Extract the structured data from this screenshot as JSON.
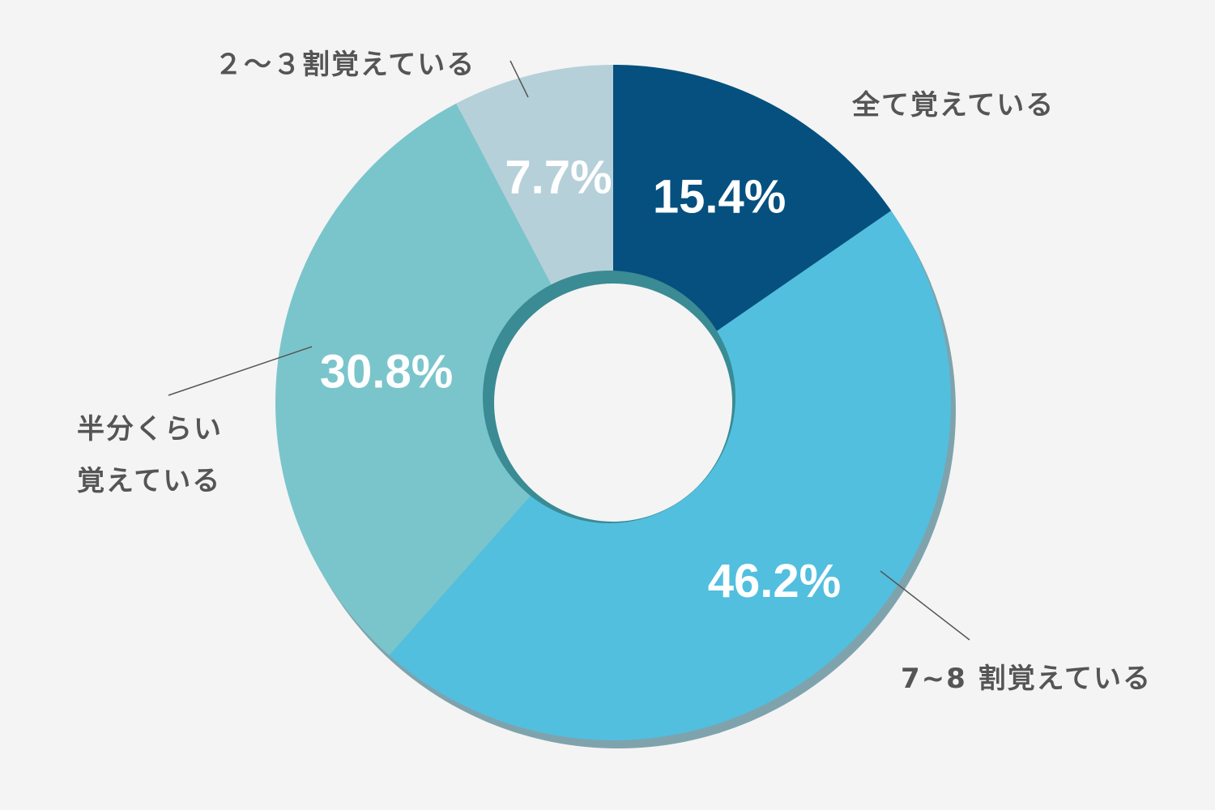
{
  "chart_data": {
    "type": "donut",
    "categories": [
      "全て覚えている",
      "7~8 割覚えている",
      "半分くらい\n覚えている",
      "２～３割覚えている"
    ],
    "values": [
      15.4,
      46.2,
      30.8,
      7.7
    ],
    "value_labels": [
      "15.4%",
      "46.2%",
      "30.8%",
      "7.7%"
    ],
    "colors": [
      "#05507f",
      "#52bfdf",
      "#7ac5cb",
      "#b6d0d9"
    ]
  }
}
